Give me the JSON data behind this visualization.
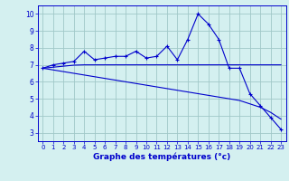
{
  "hours": [
    0,
    1,
    2,
    3,
    4,
    5,
    6,
    7,
    8,
    9,
    10,
    11,
    12,
    13,
    14,
    15,
    16,
    17,
    18,
    19,
    20,
    21,
    22,
    23
  ],
  "temp": [
    6.8,
    7.0,
    7.1,
    7.2,
    7.8,
    7.3,
    7.4,
    7.5,
    7.5,
    7.8,
    7.4,
    7.5,
    8.1,
    7.3,
    8.5,
    10.0,
    9.4,
    8.5,
    6.8,
    6.8,
    5.3,
    4.6,
    3.9,
    3.2
  ],
  "trend1": [
    6.8,
    6.86,
    6.92,
    6.98,
    7.0,
    7.0,
    7.0,
    7.0,
    7.0,
    7.0,
    7.0,
    7.0,
    7.0,
    7.0,
    7.0,
    7.0,
    7.0,
    7.0,
    7.0,
    7.0,
    7.0,
    7.0,
    7.0,
    7.0
  ],
  "trend2": [
    6.8,
    6.7,
    6.6,
    6.5,
    6.4,
    6.3,
    6.2,
    6.1,
    6.0,
    5.9,
    5.8,
    5.7,
    5.6,
    5.5,
    5.4,
    5.3,
    5.2,
    5.1,
    5.0,
    4.9,
    4.7,
    4.5,
    4.2,
    3.8
  ],
  "line_color": "#0000cc",
  "bg_color": "#d4f0f0",
  "grid_color": "#a0c8c8",
  "xlabel": "Graphe des températures (°c)",
  "ylim": [
    2.5,
    10.5
  ],
  "xlim": [
    -0.5,
    23.5
  ],
  "yticks": [
    3,
    4,
    5,
    6,
    7,
    8,
    9,
    10
  ],
  "xticks": [
    0,
    1,
    2,
    3,
    4,
    5,
    6,
    7,
    8,
    9,
    10,
    11,
    12,
    13,
    14,
    15,
    16,
    17,
    18,
    19,
    20,
    21,
    22,
    23
  ]
}
